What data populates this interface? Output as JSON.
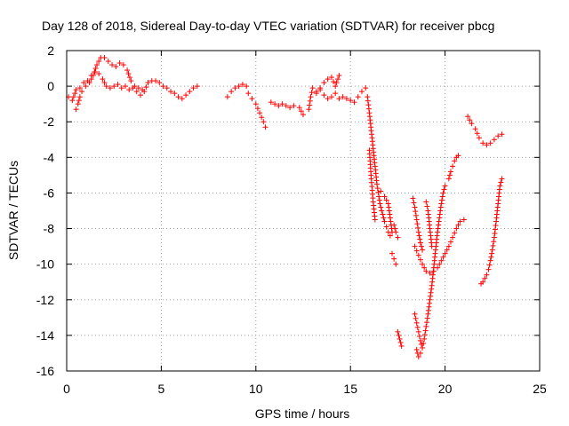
{
  "chart_data": {
    "type": "scatter",
    "title": "Day 128 of 2018, Sidereal Day-to-day VTEC variation (SDTVAR) for receiver pbcg",
    "xlabel": "GPS time / hours",
    "ylabel": "SDTVAR / TECUs",
    "xlim": [
      0,
      25
    ],
    "ylim": [
      -16,
      2
    ],
    "xticks": [
      0,
      5,
      10,
      15,
      20,
      25
    ],
    "yticks": [
      -16,
      -14,
      -12,
      -10,
      -8,
      -6,
      -4,
      -2,
      0,
      2
    ],
    "grid": true,
    "legend": "none",
    "marker": "+",
    "color": "#ff0000",
    "segments": [
      [
        [
          0.1,
          -0.6
        ],
        [
          0.3,
          -0.8
        ],
        [
          0.5,
          -0.2
        ],
        [
          0.7,
          -0.1
        ],
        [
          0.9,
          0.2
        ],
        [
          1.1,
          0.3
        ],
        [
          1.3,
          0.6
        ],
        [
          1.5,
          0.8
        ],
        [
          1.7,
          0.7
        ],
        [
          1.9,
          0.4
        ],
        [
          2.1,
          0.0
        ],
        [
          2.3,
          -0.1
        ],
        [
          2.5,
          0.0
        ],
        [
          2.7,
          0.1
        ],
        [
          2.9,
          -0.1
        ],
        [
          3.1,
          0.0
        ],
        [
          3.3,
          -0.2
        ],
        [
          3.5,
          -0.1
        ],
        [
          3.7,
          -0.3
        ],
        [
          3.9,
          -0.5
        ],
        [
          4.1,
          -0.3
        ],
        [
          4.3,
          0.2
        ],
        [
          4.5,
          0.3
        ],
        [
          4.7,
          0.3
        ],
        [
          4.9,
          0.2
        ],
        [
          5.1,
          0.0
        ],
        [
          5.3,
          -0.1
        ],
        [
          5.5,
          -0.3
        ],
        [
          5.7,
          -0.4
        ],
        [
          5.9,
          -0.6
        ],
        [
          6.1,
          -0.7
        ],
        [
          6.3,
          -0.5
        ],
        [
          6.5,
          -0.3
        ],
        [
          6.7,
          -0.1
        ],
        [
          6.9,
          0.0
        ]
      ],
      [
        [
          0.5,
          -1.3
        ],
        [
          0.6,
          -1.0
        ],
        [
          0.7,
          -0.6
        ],
        [
          0.8,
          -0.3
        ],
        [
          1.0,
          0.0
        ],
        [
          1.2,
          0.2
        ],
        [
          1.4,
          0.6
        ],
        [
          1.6,
          1.2
        ],
        [
          1.8,
          1.6
        ],
        [
          2.0,
          1.6
        ],
        [
          2.2,
          1.4
        ],
        [
          2.4,
          1.2
        ],
        [
          2.6,
          1.1
        ],
        [
          2.8,
          1.3
        ],
        [
          3.0,
          1.2
        ],
        [
          3.2,
          0.9
        ],
        [
          3.4,
          0.3
        ],
        [
          3.6,
          0.0
        ],
        [
          3.8,
          -0.1
        ],
        [
          4.0,
          -0.2
        ]
      ],
      [
        [
          8.5,
          -0.6
        ],
        [
          8.7,
          -0.3
        ],
        [
          8.9,
          -0.1
        ],
        [
          9.1,
          0.0
        ],
        [
          9.3,
          0.1
        ],
        [
          9.5,
          0.0
        ]
      ],
      [
        [
          9.6,
          -0.4
        ],
        [
          9.8,
          -0.7
        ],
        [
          10.0,
          -1.0
        ],
        [
          10.2,
          -1.5
        ],
        [
          10.4,
          -2.0
        ],
        [
          10.5,
          -2.3
        ]
      ],
      [
        [
          10.8,
          -0.9
        ],
        [
          11.0,
          -1.0
        ],
        [
          11.2,
          -1.1
        ],
        [
          11.4,
          -1.0
        ],
        [
          11.6,
          -1.1
        ],
        [
          11.8,
          -1.2
        ],
        [
          12.0,
          -1.1
        ]
      ],
      [
        [
          12.3,
          -1.2
        ],
        [
          12.5,
          -1.6
        ]
      ],
      [
        [
          12.8,
          -1.3
        ],
        [
          12.9,
          -0.6
        ],
        [
          13.0,
          -0.1
        ],
        [
          13.2,
          -0.3
        ],
        [
          13.4,
          -0.1
        ],
        [
          13.6,
          0.2
        ],
        [
          13.8,
          0.4
        ],
        [
          14.0,
          0.5
        ],
        [
          14.2,
          0.0
        ],
        [
          14.4,
          0.6
        ]
      ],
      [
        [
          13.2,
          -0.4
        ],
        [
          13.4,
          -0.2
        ],
        [
          13.6,
          -0.5
        ],
        [
          13.8,
          -0.7
        ],
        [
          14.0,
          -0.6
        ],
        [
          14.2,
          -0.4
        ],
        [
          14.4,
          -0.7
        ],
        [
          14.6,
          -0.6
        ],
        [
          14.8,
          -0.7
        ],
        [
          15.0,
          -0.8
        ],
        [
          15.2,
          -0.9
        ],
        [
          15.4,
          -0.6
        ],
        [
          15.6,
          -0.3
        ],
        [
          15.8,
          -0.1
        ]
      ],
      [
        [
          15.9,
          -0.6
        ],
        [
          16.0,
          -1.5
        ],
        [
          16.1,
          -2.5
        ],
        [
          16.2,
          -3.5
        ],
        [
          16.3,
          -4.5
        ],
        [
          16.4,
          -5.5
        ],
        [
          16.5,
          -6.2
        ],
        [
          16.6,
          -6.8
        ],
        [
          16.7,
          -7.2
        ],
        [
          16.8,
          -7.6
        ],
        [
          16.9,
          -7.9
        ],
        [
          17.0,
          -8.2
        ],
        [
          17.1,
          -8.4
        ]
      ],
      [
        [
          16.0,
          -3.6
        ],
        [
          16.1,
          -5.2
        ],
        [
          16.2,
          -6.5
        ],
        [
          16.3,
          -7.5
        ]
      ],
      [
        [
          16.6,
          -5.9
        ],
        [
          16.8,
          -6.2
        ],
        [
          17.0,
          -6.6
        ],
        [
          17.1,
          -7.4
        ],
        [
          17.2,
          -8.2
        ]
      ],
      [
        [
          17.3,
          -7.8
        ],
        [
          17.4,
          -8.2
        ],
        [
          17.5,
          -8.5
        ]
      ],
      [
        [
          17.2,
          -9.4
        ],
        [
          17.3,
          -9.7
        ],
        [
          17.4,
          -10.0
        ]
      ],
      [
        [
          17.5,
          -13.8
        ],
        [
          17.6,
          -14.2
        ],
        [
          17.7,
          -14.6
        ]
      ],
      [
        [
          18.3,
          -6.3
        ],
        [
          18.4,
          -6.8
        ],
        [
          18.5,
          -7.5
        ],
        [
          18.6,
          -8.2
        ],
        [
          18.7,
          -8.8
        ],
        [
          18.8,
          -9.2
        ]
      ],
      [
        [
          18.4,
          -9.0
        ],
        [
          18.6,
          -9.5
        ],
        [
          18.8,
          -10.0
        ],
        [
          19.0,
          -10.4
        ],
        [
          19.2,
          -10.5
        ],
        [
          19.4,
          -10.4
        ],
        [
          19.6,
          -10.2
        ],
        [
          19.8,
          -9.8
        ],
        [
          20.0,
          -9.4
        ],
        [
          20.2,
          -9.0
        ],
        [
          20.4,
          -8.5
        ],
        [
          20.6,
          -8.0
        ],
        [
          20.8,
          -7.6
        ],
        [
          21.0,
          -7.5
        ]
      ],
      [
        [
          18.4,
          -12.8
        ],
        [
          18.5,
          -13.3
        ],
        [
          18.6,
          -13.8
        ],
        [
          18.7,
          -14.3
        ],
        [
          18.8,
          -14.7
        ],
        [
          18.9,
          -14.2
        ],
        [
          19.0,
          -13.5
        ],
        [
          19.1,
          -12.8
        ],
        [
          19.2,
          -12.0
        ],
        [
          19.3,
          -11.2
        ],
        [
          19.4,
          -10.2
        ],
        [
          19.5,
          -9.2
        ],
        [
          19.6,
          -8.2
        ],
        [
          19.7,
          -7.4
        ],
        [
          19.8,
          -6.6
        ],
        [
          19.9,
          -6.0
        ],
        [
          20.0,
          -5.6
        ]
      ],
      [
        [
          18.5,
          -14.8
        ],
        [
          18.6,
          -15.2
        ],
        [
          18.7,
          -15.0
        ]
      ],
      [
        [
          19.0,
          -6.5
        ],
        [
          19.1,
          -7.0
        ],
        [
          19.2,
          -8.0
        ],
        [
          19.3,
          -9.0
        ]
      ],
      [
        [
          20.2,
          -5.2
        ],
        [
          20.3,
          -4.8
        ],
        [
          20.4,
          -4.5
        ],
        [
          20.5,
          -4.2
        ],
        [
          20.6,
          -4.0
        ],
        [
          20.7,
          -3.9
        ]
      ],
      [
        [
          21.2,
          -1.7
        ],
        [
          21.4,
          -2.1
        ],
        [
          21.6,
          -2.4
        ],
        [
          21.8,
          -2.9
        ],
        [
          22.0,
          -3.2
        ],
        [
          22.2,
          -3.3
        ],
        [
          22.4,
          -3.2
        ],
        [
          22.6,
          -3.0
        ],
        [
          22.8,
          -2.8
        ],
        [
          23.0,
          -2.7
        ]
      ],
      [
        [
          21.9,
          -11.1
        ],
        [
          22.0,
          -11.0
        ],
        [
          22.1,
          -10.8
        ],
        [
          22.2,
          -10.6
        ],
        [
          22.3,
          -10.3
        ],
        [
          22.4,
          -9.8
        ],
        [
          22.5,
          -9.2
        ],
        [
          22.6,
          -8.5
        ],
        [
          22.7,
          -7.6
        ],
        [
          22.8,
          -6.6
        ],
        [
          22.9,
          -5.6
        ],
        [
          23.0,
          -5.2
        ]
      ]
    ]
  }
}
